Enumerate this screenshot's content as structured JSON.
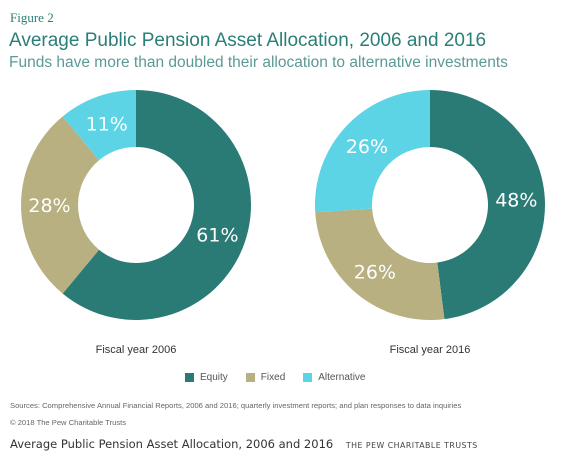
{
  "figure_label": "Figure 2",
  "title": "Average Public Pension Asset Allocation, 2006 and 2016",
  "subtitle": "Funds have more than doubled their allocation to alternative investments",
  "chart_data": [
    {
      "type": "pie",
      "title": "Fiscal year 2006",
      "categories": [
        "Equity",
        "Fixed",
        "Alternative"
      ],
      "values": [
        61,
        28,
        11
      ],
      "labels": [
        "61%",
        "28%",
        "11%"
      ]
    },
    {
      "type": "pie",
      "title": "Fiscal year 2016",
      "categories": [
        "Equity",
        "Fixed",
        "Alternative"
      ],
      "values": [
        48,
        26,
        26
      ],
      "labels": [
        "48%",
        "26%",
        "26%"
      ]
    }
  ],
  "colors": {
    "Equity": "#2a7a75",
    "Fixed": "#b8b080",
    "Alternative": "#5cd4e6"
  },
  "legend": [
    {
      "label": "Equity",
      "color": "#2a7a75"
    },
    {
      "label": "Fixed",
      "color": "#b8b080"
    },
    {
      "label": "Alternative",
      "color": "#5cd4e6"
    }
  ],
  "sources": "Sources: Comprehensive Annual Financial Reports, 2006 and 2016; quarterly investment reports; and plan responses to data inquiries",
  "copyright": "© 2018 The Pew Charitable Trusts",
  "footer": {
    "title": "Average Public Pension Asset Allocation, 2006 and 2016",
    "org": "THE PEW CHARITABLE TRUSTS"
  }
}
